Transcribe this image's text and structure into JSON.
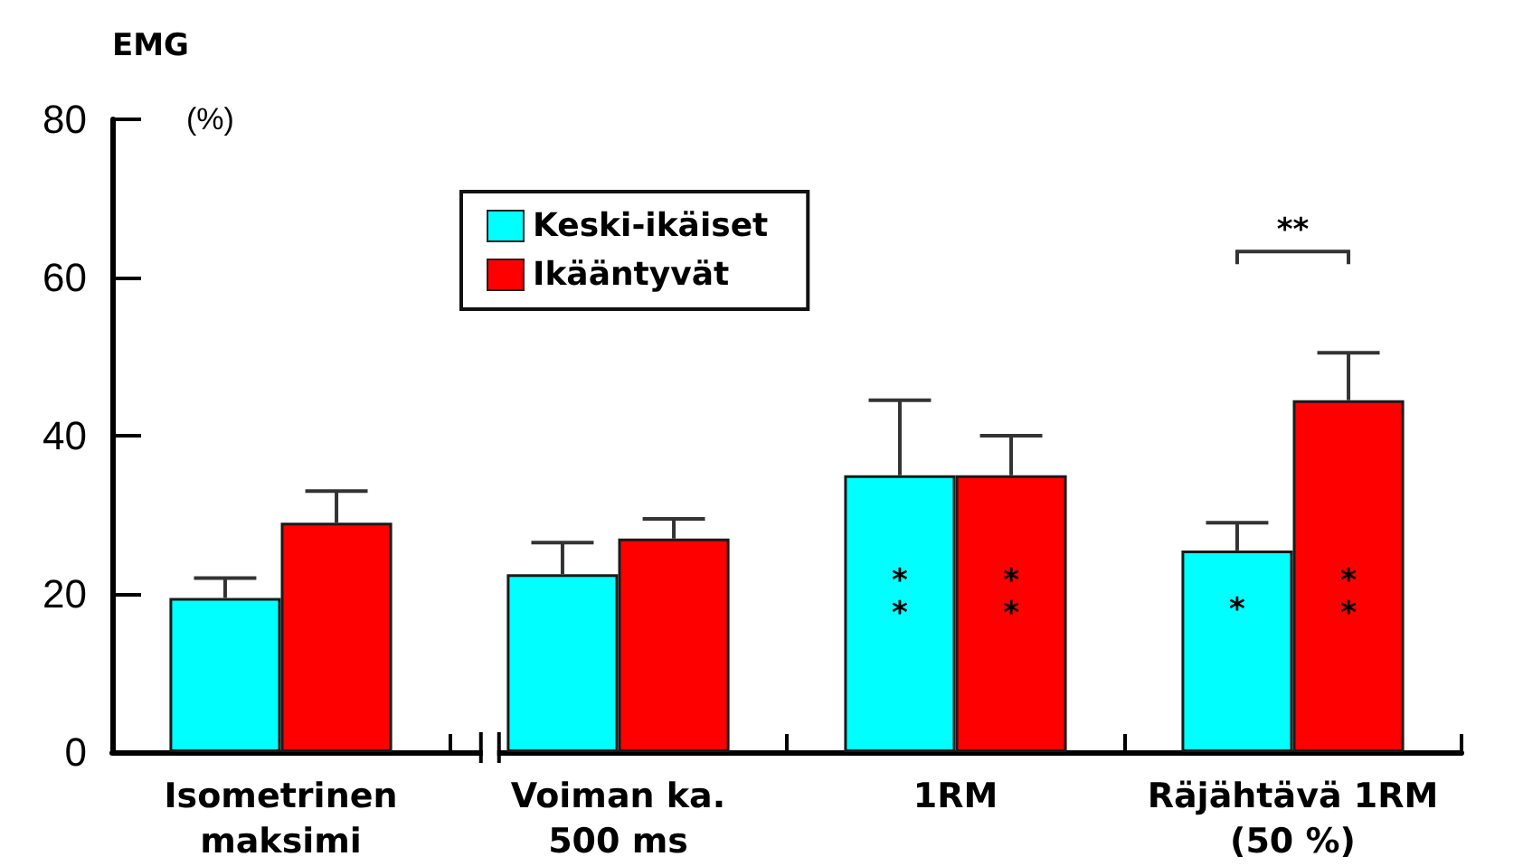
{
  "chart_data": {
    "type": "bar",
    "ylabel": "EMG",
    "categories": [
      "Isometrinen\nmaksimi",
      "Voiman ka.\n500 ms",
      "1RM",
      "Räjähtävä 1RM\n(50 %)"
    ],
    "series": [
      {
        "name": "Keski-ikäiset",
        "color": "#00ffff",
        "values": [
          19.5,
          22.5,
          35,
          25.5
        ],
        "errors": [
          [
            19.5,
            22
          ],
          [
            22.5,
            26.5
          ],
          [
            35,
            44.5
          ],
          [
            25.5,
            29
          ]
        ]
      },
      {
        "name": "Ikääntyvät",
        "color": "#ff0000",
        "values": [
          29,
          27,
          35,
          44.5
        ],
        "errors": [
          [
            29,
            33
          ],
          [
            27,
            29.5
          ],
          [
            35,
            40
          ],
          [
            44.5,
            50.5
          ]
        ]
      }
    ],
    "ylim": [
      0,
      80
    ],
    "yticks": [
      0,
      20,
      40,
      60,
      80
    ],
    "grid": false,
    "legend": "top left",
    "annotations": [
      "(%)",
      {
        "text": "*\n*",
        "x": "1RM",
        "y": 19.5
      },
      {
        "text": "*\n*",
        "x": "1RM",
        "y": 19.5
      },
      {
        "text": "*",
        "x": "Räjähtävä 1RM\n(50 %)",
        "y": 18
      },
      {
        "text": "*\n*",
        "x": "Räjähtävä 1RM\n(50 %)",
        "y": 19.5
      },
      "**"
    ]
  }
}
